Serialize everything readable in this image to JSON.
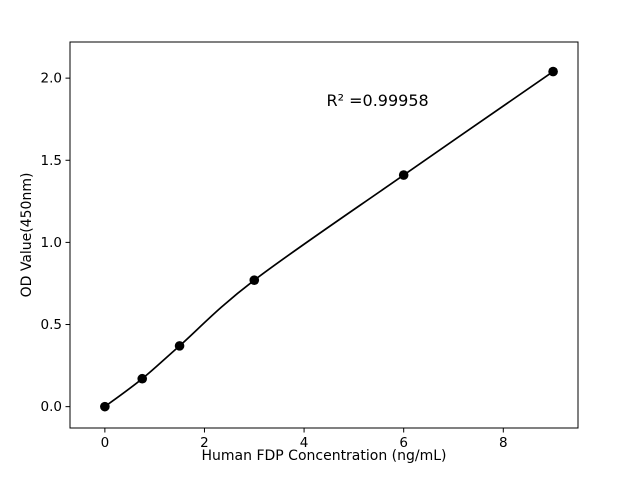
{
  "figure": {
    "background": "#ffffff"
  },
  "chart_data": {
    "type": "scatter",
    "title": "",
    "xlabel": "Human FDP Concentration (ng/mL)",
    "ylabel": "OD Value(450nm)",
    "annotation": "R² =0.99958",
    "annotation_pos": {
      "x": 4.45,
      "y": 1.83
    },
    "points": [
      {
        "x": 0,
        "y": 0.0
      },
      {
        "x": 0.75,
        "y": 0.17
      },
      {
        "x": 1.5,
        "y": 0.37
      },
      {
        "x": 3,
        "y": 0.77
      },
      {
        "x": 6,
        "y": 1.41
      },
      {
        "x": 9,
        "y": 2.04
      }
    ],
    "fit": "smooth curve through all data points",
    "xticks": [
      {
        "value": 0,
        "label": "0"
      },
      {
        "value": 2,
        "label": "2"
      },
      {
        "value": 4,
        "label": "4"
      },
      {
        "value": 6,
        "label": "6"
      },
      {
        "value": 8,
        "label": "8"
      }
    ],
    "yticks": [
      {
        "value": 0.0,
        "label": "0.0"
      },
      {
        "value": 0.5,
        "label": "0.5"
      },
      {
        "value": 1.0,
        "label": "1.0"
      },
      {
        "value": 1.5,
        "label": "1.5"
      },
      {
        "value": 2.0,
        "label": "2.0"
      }
    ],
    "xlim": [
      -0.7,
      9.5
    ],
    "ylim": [
      -0.13,
      2.22
    ],
    "grid": false,
    "legend": null,
    "point_color": "#000000",
    "line_color": "#000000",
    "axes_color": "#000000"
  }
}
